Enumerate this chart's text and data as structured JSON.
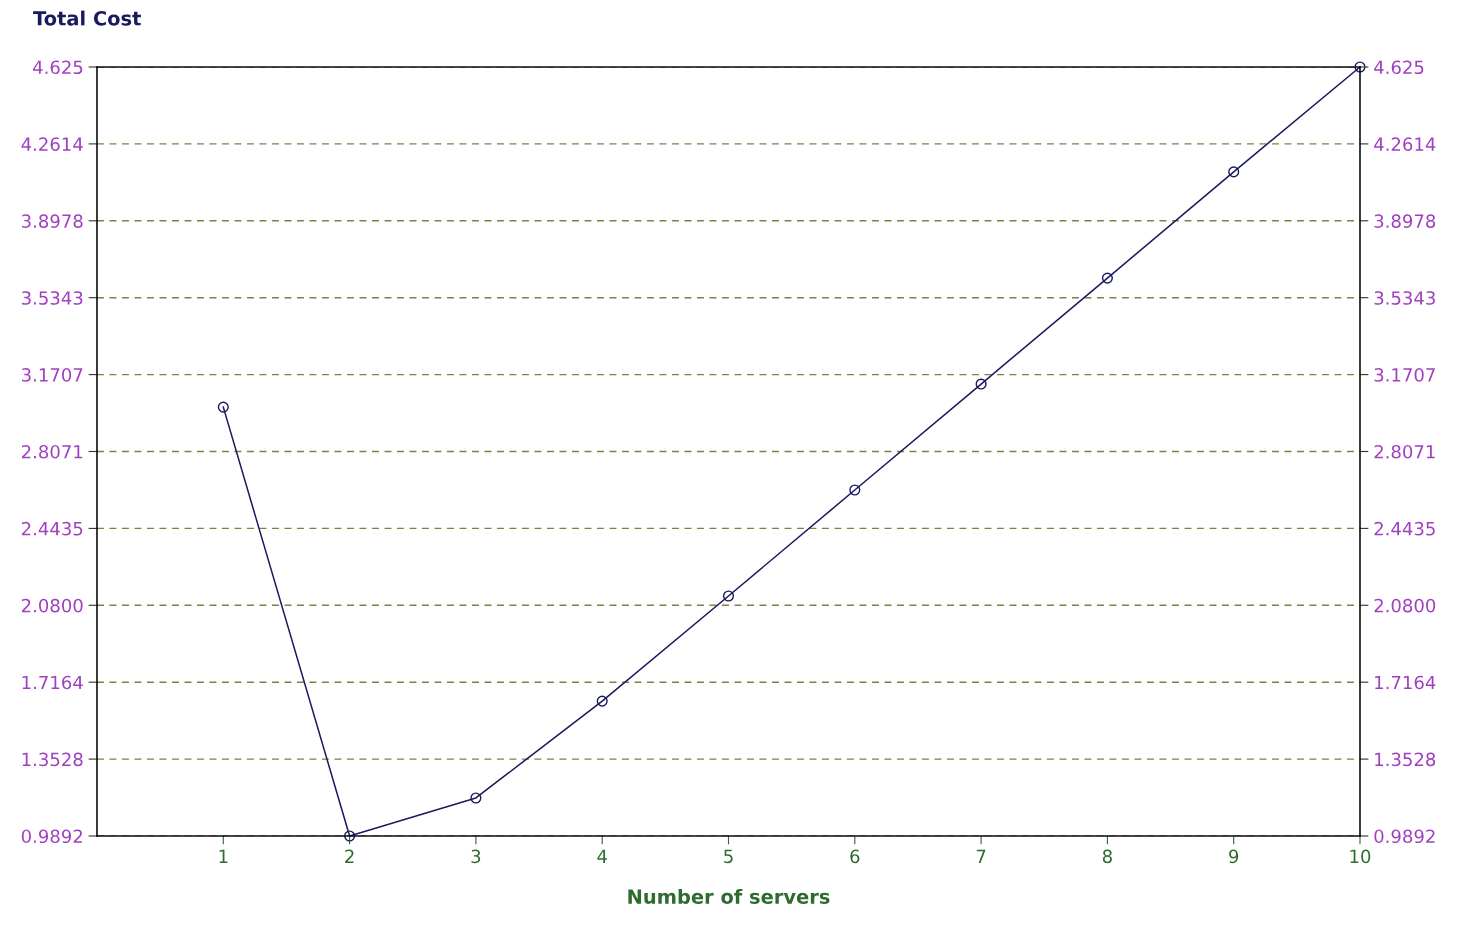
{
  "chart_data": {
    "type": "line",
    "title": "Total Cost",
    "xlabel": "Number of servers",
    "x": [
      1,
      2,
      3,
      4,
      5,
      6,
      7,
      8,
      9,
      10
    ],
    "series": [
      {
        "color": "#1a1a5e",
        "values": [
          3.017,
          0.9892,
          1.169,
          1.627,
          2.124,
          2.625,
          3.126,
          3.627,
          4.129,
          4.625
        ]
      }
    ],
    "xlim": [
      0,
      10
    ],
    "xticks": [
      1,
      2,
      3,
      4,
      5,
      6,
      7,
      8,
      9,
      10
    ],
    "ylim": [
      0.9892,
      4.625
    ],
    "yticks": [
      0.9892,
      1.3528,
      1.7164,
      {
        "value": 2.08,
        "label": "2.0800"
      },
      2.4435,
      2.8071,
      3.1707,
      3.5343,
      3.8978,
      4.2614,
      4.625
    ],
    "y2lim": [
      0.9892,
      4.625
    ],
    "y2ticks": [
      0.9892,
      1.3528,
      1.7164,
      {
        "value": 2.08,
        "label": "2.0800"
      },
      2.4435,
      2.8071,
      3.1707,
      3.5343,
      3.8978,
      4.2614,
      4.625
    ],
    "grid": "y",
    "marker": "circle",
    "line_style": "solid"
  }
}
